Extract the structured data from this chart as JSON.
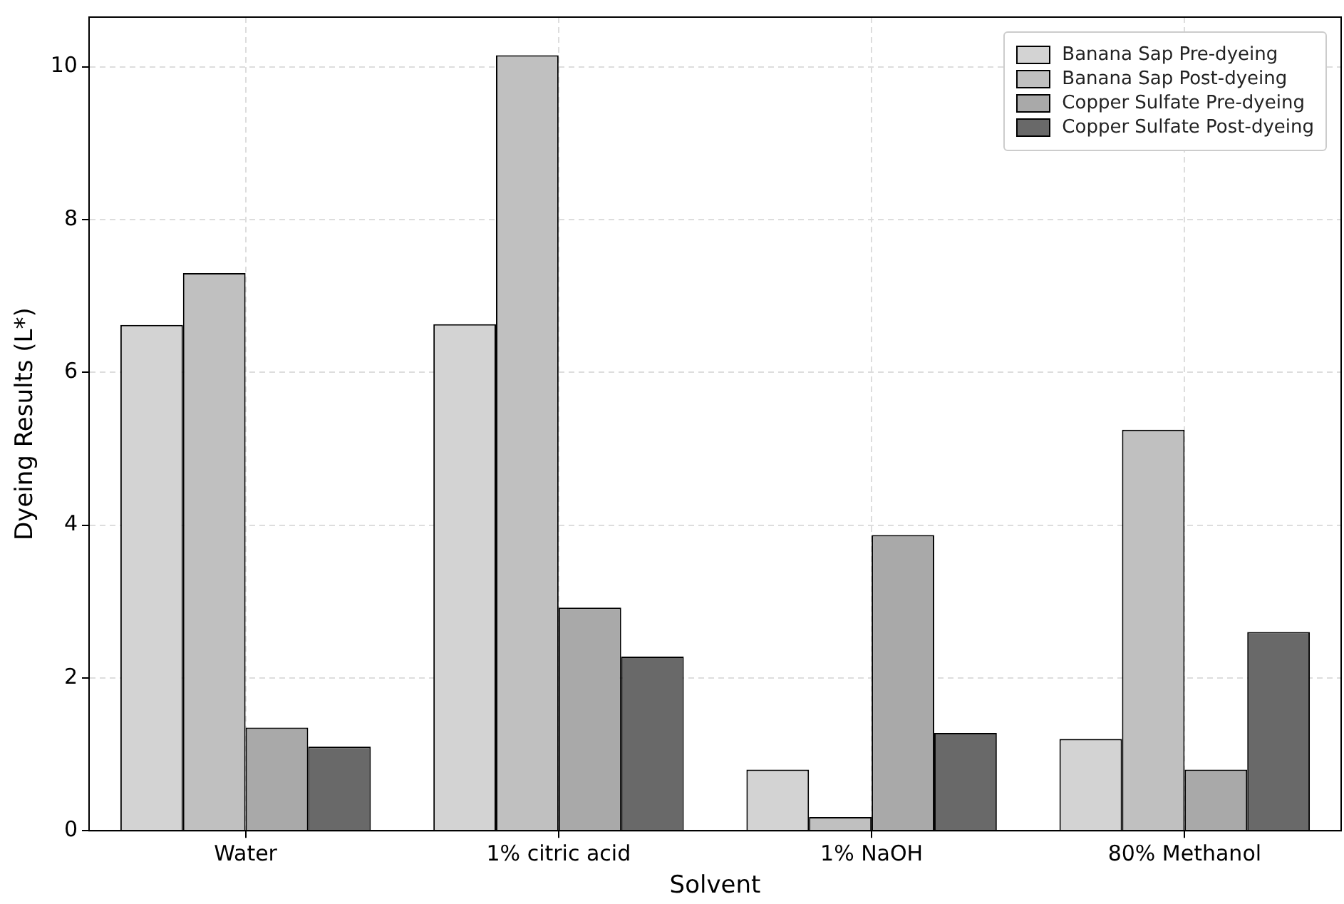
{
  "chart_data": {
    "type": "bar",
    "xlabel": "Solvent",
    "ylabel": "Dyeing Results (L*)",
    "categories": [
      "Water",
      "1% citric acid",
      "1% NaOH",
      "80% Methanol"
    ],
    "series": [
      {
        "name": "Banana Sap Pre-dyeing",
        "color": "#d3d3d3",
        "values": [
          6.62,
          6.63,
          0.8,
          1.2
        ]
      },
      {
        "name": "Banana Sap Post-dyeing",
        "color": "#c0c0c0",
        "values": [
          7.3,
          10.15,
          0.18,
          5.25
        ]
      },
      {
        "name": "Copper Sulfate Pre-dyeing",
        "color": "#a9a9a9",
        "values": [
          1.35,
          2.92,
          3.87,
          0.8
        ]
      },
      {
        "name": "Copper Sulfate Post-dyeing",
        "color": "#696969",
        "values": [
          1.1,
          2.28,
          1.28,
          2.6
        ]
      }
    ],
    "ylim": [
      0,
      10.65
    ],
    "yticks": [
      0,
      2,
      4,
      6,
      8,
      10
    ],
    "grid": true,
    "legend": "top right"
  }
}
